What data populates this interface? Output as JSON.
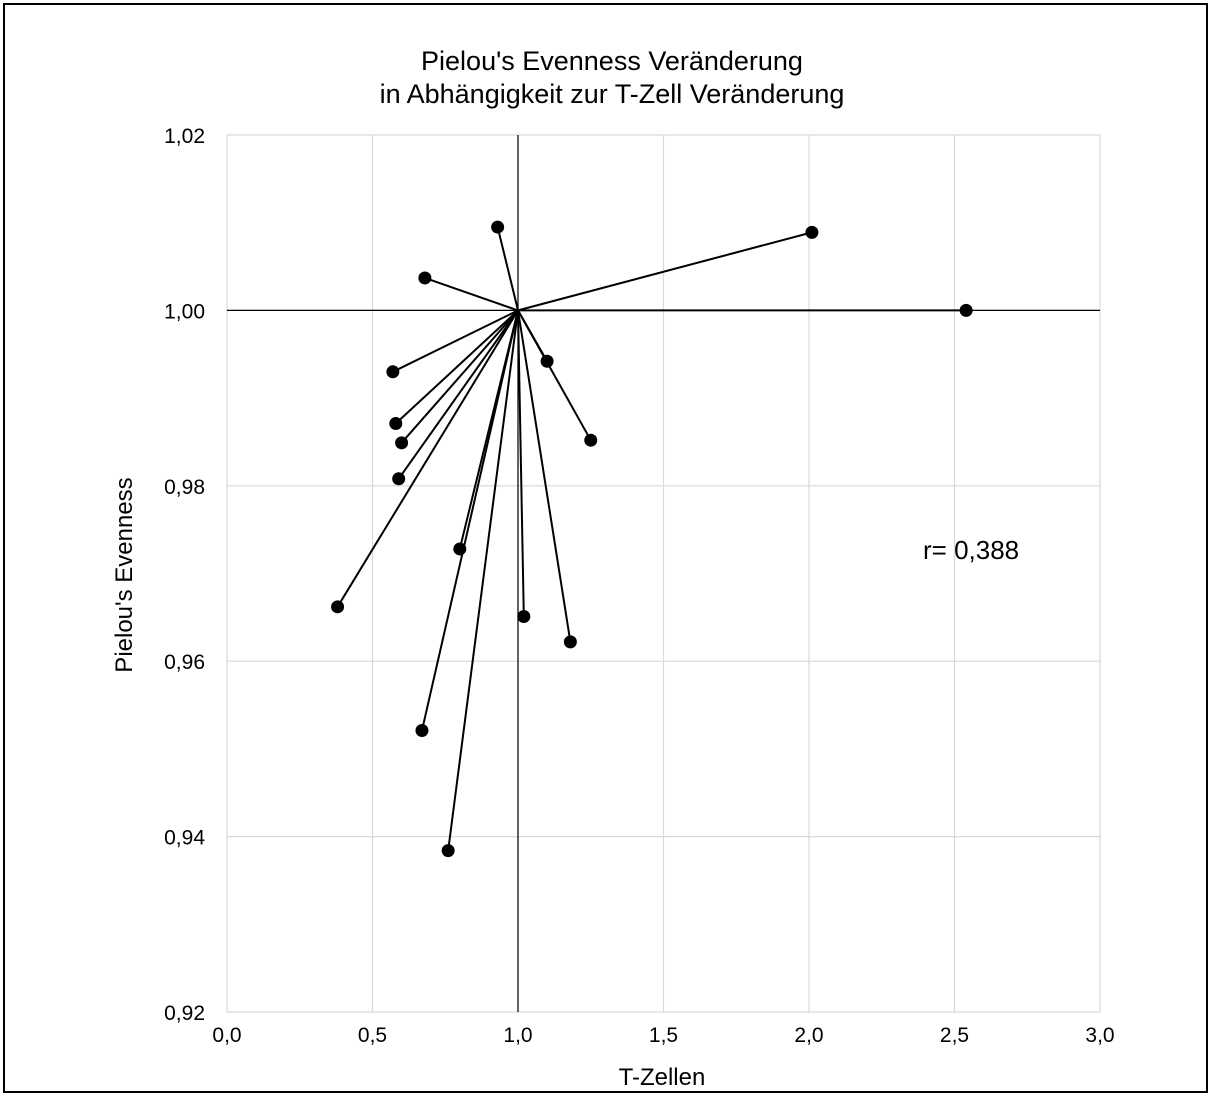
{
  "chart_data": {
    "type": "scatter",
    "title": [
      "Pielou's Evenness Veränderung",
      "in Abhängigkeit zur T-Zell Veränderung"
    ],
    "xlabel": "T-Zellen",
    "ylabel": "Pielou's Evenness",
    "xlim": [
      0,
      3
    ],
    "ylim": [
      0.92,
      1.02
    ],
    "x_ticks": [
      "0,0",
      "0,5",
      "1,0",
      "1,5",
      "2,0",
      "2,5",
      "3,0"
    ],
    "y_ticks": [
      "0,92",
      "0,94",
      "0,96",
      "0,98",
      "1,00",
      "1,02"
    ],
    "grid": true,
    "reference_lines": {
      "x": 1.0,
      "y": 1.0
    },
    "origin": [
      1.0,
      1.0
    ],
    "points": [
      {
        "x": 0.93,
        "y": 1.0095
      },
      {
        "x": 2.01,
        "y": 1.0089
      },
      {
        "x": 0.68,
        "y": 1.0037
      },
      {
        "x": 2.54,
        "y": 1.0
      },
      {
        "x": 0.57,
        "y": 0.993
      },
      {
        "x": 1.1,
        "y": 0.9942
      },
      {
        "x": 0.58,
        "y": 0.9871
      },
      {
        "x": 0.6,
        "y": 0.9849
      },
      {
        "x": 1.25,
        "y": 0.9852
      },
      {
        "x": 0.59,
        "y": 0.9808
      },
      {
        "x": 0.8,
        "y": 0.9728
      },
      {
        "x": 0.38,
        "y": 0.9662
      },
      {
        "x": 1.02,
        "y": 0.9651
      },
      {
        "x": 1.18,
        "y": 0.9622
      },
      {
        "x": 0.67,
        "y": 0.9521
      },
      {
        "x": 0.76,
        "y": 0.9384
      }
    ],
    "annotation": "r= 0,388"
  }
}
